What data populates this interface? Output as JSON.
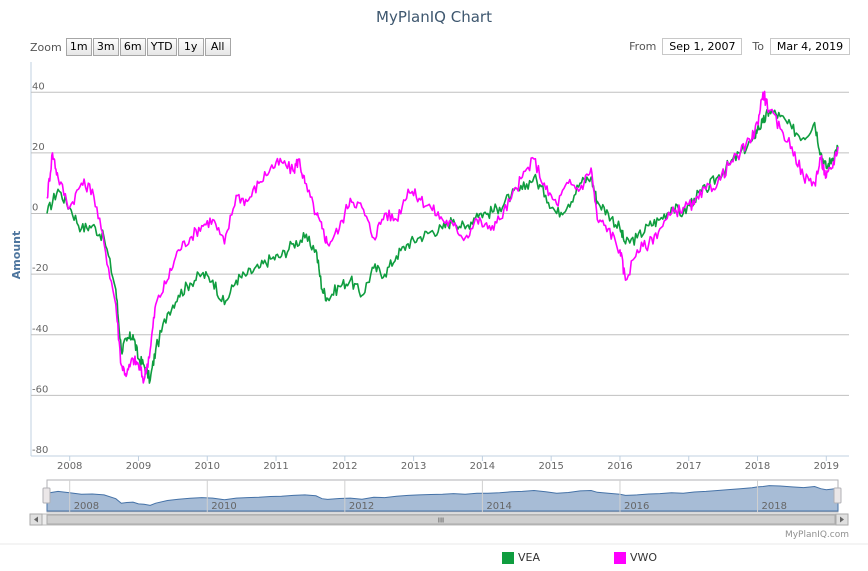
{
  "title": "MyPlanIQ Chart",
  "zoom": {
    "label": "Zoom",
    "buttons": [
      "1m",
      "3m",
      "6m",
      "YTD",
      "1y",
      "All"
    ]
  },
  "range": {
    "from_label": "From",
    "from_value": "Sep 1, 2007",
    "to_label": "To",
    "to_value": "Mar 4, 2019"
  },
  "credit": "MyPlanIQ.com",
  "navigator": {
    "years": [
      "2008",
      "2010",
      "2012",
      "2014",
      "2016",
      "2018"
    ],
    "scroll_grip": "III"
  },
  "chart_data": {
    "type": "line",
    "ylabel": "Amount",
    "xlabel": "",
    "ylim": [
      -80,
      50
    ],
    "yticks": [
      40,
      20,
      0,
      -20,
      -40,
      -60,
      -80
    ],
    "xlim": [
      2007.67,
      2019.17
    ],
    "xticks": [
      2008,
      2009,
      2010,
      2011,
      2012,
      2013,
      2014,
      2015,
      2016,
      2017,
      2018,
      2019
    ],
    "xtick_labels": [
      "2008",
      "2009",
      "2010",
      "2011",
      "2012",
      "2013",
      "2014",
      "2015",
      "2016",
      "2017",
      "2018",
      "2019"
    ],
    "legend_position": "bottom-center",
    "colors": {
      "VEA": "#0f9d3f",
      "VWO": "#ff00ff",
      "navigator_fill": "#a7bcd6",
      "navigator_line": "#4572a7"
    },
    "series": [
      {
        "name": "VEA",
        "x": [
          2007.67,
          2007.83,
          2008.0,
          2008.17,
          2008.33,
          2008.5,
          2008.67,
          2008.75,
          2008.83,
          2008.92,
          2009.0,
          2009.08,
          2009.17,
          2009.25,
          2009.42,
          2009.58,
          2009.75,
          2009.92,
          2010.08,
          2010.25,
          2010.42,
          2010.58,
          2010.75,
          2010.92,
          2011.08,
          2011.25,
          2011.42,
          2011.58,
          2011.67,
          2011.75,
          2011.92,
          2012.08,
          2012.25,
          2012.42,
          2012.58,
          2012.75,
          2012.92,
          2013.08,
          2013.25,
          2013.42,
          2013.58,
          2013.75,
          2013.92,
          2014.08,
          2014.25,
          2014.42,
          2014.58,
          2014.75,
          2014.92,
          2015.08,
          2015.25,
          2015.42,
          2015.58,
          2015.67,
          2015.83,
          2016.0,
          2016.08,
          2016.25,
          2016.42,
          2016.58,
          2016.75,
          2016.92,
          2017.08,
          2017.25,
          2017.42,
          2017.58,
          2017.75,
          2017.92,
          2018.0,
          2018.08,
          2018.17,
          2018.33,
          2018.5,
          2018.67,
          2018.83,
          2018.92,
          2019.0,
          2019.08,
          2019.17
        ],
        "values": [
          0,
          8,
          2,
          -5,
          -4,
          -8,
          -25,
          -45,
          -42,
          -40,
          -48,
          -50,
          -55,
          -45,
          -33,
          -27,
          -23,
          -20,
          -22,
          -30,
          -22,
          -20,
          -18,
          -15,
          -14,
          -10,
          -8,
          -12,
          -25,
          -28,
          -24,
          -22,
          -27,
          -18,
          -20,
          -14,
          -10,
          -8,
          -6,
          -5,
          -2,
          -5,
          0,
          0,
          2,
          6,
          8,
          12,
          6,
          0,
          3,
          10,
          12,
          4,
          0,
          -5,
          -10,
          -8,
          -4,
          -2,
          2,
          0,
          5,
          8,
          12,
          16,
          20,
          24,
          28,
          30,
          34,
          32,
          28,
          25,
          30,
          20,
          15,
          18,
          22
        ]
      },
      {
        "name": "VWO",
        "x": [
          2007.67,
          2007.75,
          2007.83,
          2008.0,
          2008.17,
          2008.33,
          2008.5,
          2008.67,
          2008.75,
          2008.83,
          2008.92,
          2009.0,
          2009.08,
          2009.17,
          2009.25,
          2009.42,
          2009.58,
          2009.75,
          2009.92,
          2010.08,
          2010.25,
          2010.42,
          2010.58,
          2010.75,
          2010.92,
          2011.08,
          2011.25,
          2011.33,
          2011.42,
          2011.58,
          2011.67,
          2011.75,
          2011.92,
          2012.08,
          2012.25,
          2012.42,
          2012.58,
          2012.75,
          2012.92,
          2013.08,
          2013.25,
          2013.42,
          2013.58,
          2013.75,
          2013.92,
          2014.08,
          2014.25,
          2014.42,
          2014.58,
          2014.75,
          2014.92,
          2015.08,
          2015.25,
          2015.42,
          2015.58,
          2015.67,
          2015.83,
          2016.0,
          2016.08,
          2016.25,
          2016.42,
          2016.58,
          2016.75,
          2016.92,
          2017.08,
          2017.25,
          2017.42,
          2017.58,
          2017.75,
          2017.92,
          2018.0,
          2018.08,
          2018.17,
          2018.33,
          2018.5,
          2018.67,
          2018.83,
          2018.92,
          2019.0,
          2019.08,
          2019.17
        ],
        "values": [
          5,
          20,
          12,
          2,
          10,
          8,
          -10,
          -30,
          -50,
          -53,
          -48,
          -50,
          -55,
          -45,
          -30,
          -22,
          -12,
          -8,
          -4,
          -2,
          -10,
          6,
          4,
          10,
          15,
          17,
          14,
          18,
          10,
          0,
          -5,
          -10,
          -5,
          5,
          2,
          -8,
          0,
          -2,
          8,
          5,
          2,
          -2,
          -4,
          -8,
          -2,
          -5,
          -2,
          5,
          12,
          18,
          8,
          3,
          10,
          8,
          15,
          -2,
          -5,
          -12,
          -22,
          -12,
          -10,
          -5,
          0,
          2,
          3,
          8,
          10,
          16,
          20,
          25,
          30,
          40,
          34,
          28,
          22,
          12,
          10,
          18,
          12,
          15,
          22
        ]
      }
    ]
  }
}
